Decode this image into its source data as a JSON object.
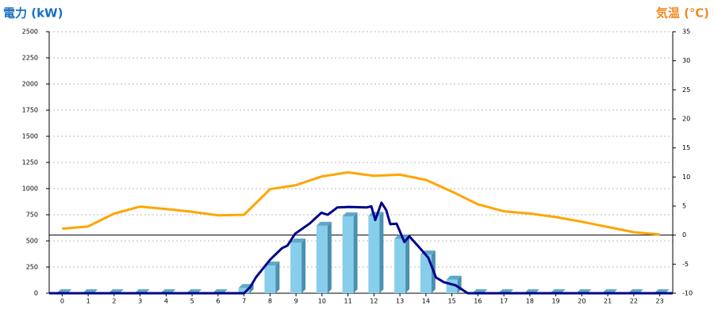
{
  "chart_data": {
    "type": "combo",
    "title_left": "電力 (kW)",
    "title_right": "気温 (℃)",
    "categories": [
      "0",
      "1",
      "2",
      "3",
      "4",
      "5",
      "6",
      "7",
      "8",
      "9",
      "10",
      "11",
      "12",
      "13",
      "14",
      "15",
      "16",
      "17",
      "18",
      "19",
      "20",
      "21",
      "22",
      "23"
    ],
    "xlim": [
      -0.5,
      23.5
    ],
    "ylim": [
      0,
      2500
    ],
    "yticks": [
      0,
      250,
      500,
      750,
      1000,
      1250,
      1500,
      1750,
      2000,
      2250,
      2500
    ],
    "y2lim": [
      -10,
      35
    ],
    "y2ticks": [
      -10,
      -5,
      0,
      5,
      10,
      15,
      20,
      25,
      30,
      35
    ],
    "grid": true,
    "series": [
      {
        "type": "bar",
        "color": "#87ceeb",
        "values": [
          0,
          0,
          0,
          0,
          0,
          0,
          0,
          50,
          265,
          485,
          645,
          735,
          740,
          520,
          370,
          130,
          0,
          0,
          0,
          0,
          0,
          0,
          0,
          0
        ]
      },
      {
        "type": "line",
        "color": "#00008b",
        "x": [
          -0.5,
          7.0,
          7.24,
          7.45,
          8.0,
          8.46,
          8.67,
          8.97,
          9.52,
          9.98,
          10.22,
          10.59,
          11.04,
          11.71,
          11.9,
          12.05,
          12.29,
          12.47,
          12.63,
          12.87,
          13.17,
          13.36,
          13.72,
          14.09,
          14.39,
          14.69,
          15.15,
          15.61,
          23.5
        ],
        "values": [
          0,
          0,
          60,
          150,
          320,
          430,
          455,
          570,
          665,
          770,
          750,
          820,
          825,
          820,
          830,
          700,
          865,
          795,
          660,
          665,
          490,
          545,
          445,
          340,
          150,
          105,
          75,
          0,
          0
        ]
      },
      {
        "type": "line",
        "color": "#ffa500",
        "axis": "y2",
        "values": [
          1.1,
          1.5,
          3.7,
          4.9,
          4.5,
          4.0,
          3.4,
          3.5,
          7.9,
          8.6,
          10.1,
          10.8,
          10.2,
          10.4,
          9.5,
          7.5,
          5.3,
          4.1,
          3.7,
          3.1,
          2.3,
          1.4,
          0.5,
          0.1
        ]
      }
    ]
  }
}
